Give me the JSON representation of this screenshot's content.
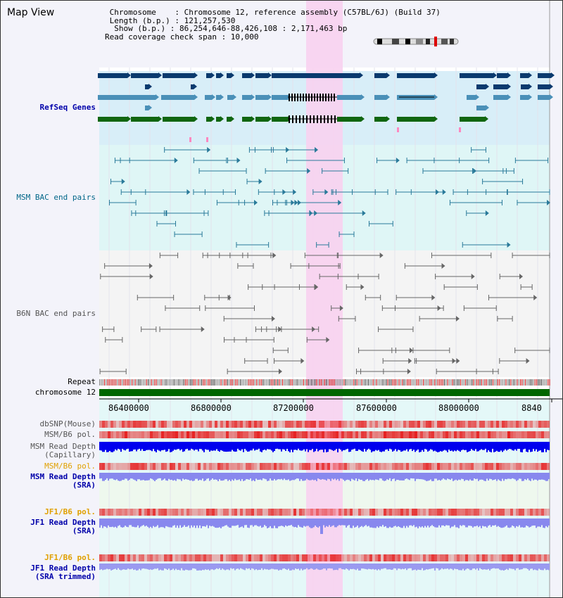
{
  "app": {
    "title": "Map View"
  },
  "info": {
    "chromosome": " Chromosome    : Chromosome 12, reference assembly (C57BL/6J) (Build 37)",
    "length": " Length (b.p.) : 121,257,530",
    "show": "  Show (b.p.) : 86,254,646-88,426,108 : 2,171,463 bp",
    "coverage": "Read coverage check span : 10,000"
  },
  "tracks": {
    "refseq": "RefSeq Genes",
    "msm_bac": "MSM BAC end pairs",
    "b6n_bac": "B6N BAC end pairs",
    "repeat": "Repeat",
    "chromosome": "chromosome 12",
    "dbsnp": "dbSNP(Mouse)",
    "msm_b6_pol_1": "MSM/B6 pol.",
    "msm_depth_cap_1": "MSM Read Depth",
    "msm_depth_cap_2": "(Capillary)",
    "msm_b6_pol_2": "MSM/B6 pol.",
    "msm_depth_sra_1": "MSM Read Depth",
    "msm_depth_sra_2": "(SRA)",
    "jf1_b6_pol_1": "JF1/B6 pol.",
    "jf1_depth_sra_1": "JF1 Read Depth",
    "jf1_depth_sra_2": "(SRA)",
    "jf1_b6_pol_2": "JF1/B6 pol.",
    "jf1_depth_trim_1": "JF1 Read Depth",
    "jf1_depth_trim_2": "(SRA trimmed)"
  },
  "axis": {
    "ticks": [
      "86400000",
      "86800000",
      "87200000",
      "87600000",
      "88000000",
      "8840"
    ]
  },
  "colors": {
    "refseq_band": "#d8eef8",
    "msm_band": "#dff6f6",
    "refseq_dark": "#0a3a6e",
    "refseq_mid": "#4a90b8",
    "refseq_green": "#116611",
    "msm_line": "#2a7a9a",
    "b6n_line": "#666666",
    "highlight": "#f8d2f0",
    "chromosome": "#006600",
    "read_depth_capillary": "#0000ee",
    "read_depth_sra": "#8888ee",
    "label_blue": "#0000aa",
    "label_orange": "#e0a000",
    "label_msm": "#006688",
    "label_b6n": "#555555"
  }
}
